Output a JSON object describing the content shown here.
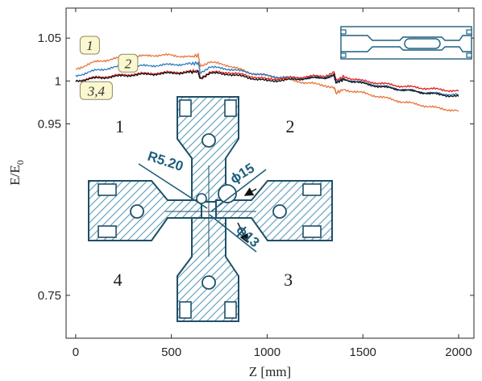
{
  "chart_data": {
    "type": "line",
    "title": "",
    "xlabel": "Z [mm]",
    "ylabel_main": "E/E",
    "ylabel_sub": "0",
    "xlim": [
      -50,
      2080
    ],
    "ylim": [
      0.7,
      1.085
    ],
    "xticks": [
      0,
      500,
      1000,
      1500,
      2000
    ],
    "yticks": [
      0.75,
      0.95,
      1,
      1.05
    ],
    "ytick_labels": [
      "0.75",
      "0.95",
      "1",
      "1.05"
    ],
    "grid": false,
    "series": [
      {
        "name": "1",
        "color": "#e8743b",
        "x": [
          0,
          100,
          200,
          300,
          400,
          500,
          600,
          640,
          650,
          700,
          800,
          900,
          1000,
          1100,
          1200,
          1300,
          1350,
          1360,
          1400,
          1500,
          1600,
          1700,
          1800,
          1900,
          2000
        ],
        "y": [
          1.014,
          1.022,
          1.026,
          1.028,
          1.03,
          1.03,
          1.028,
          1.03,
          1.018,
          1.022,
          1.018,
          1.01,
          1.006,
          1.002,
          0.998,
          0.995,
          0.992,
          0.986,
          0.99,
          0.986,
          0.981,
          0.976,
          0.972,
          0.968,
          0.965
        ]
      },
      {
        "name": "2",
        "color": "#2b7bbd",
        "x": [
          0,
          100,
          200,
          300,
          400,
          500,
          600,
          640,
          650,
          700,
          800,
          900,
          1000,
          1100,
          1200,
          1300,
          1350,
          1360,
          1400,
          1500,
          1600,
          1700,
          1800,
          1900,
          2000
        ],
        "y": [
          1.006,
          1.012,
          1.016,
          1.017,
          1.018,
          1.019,
          1.02,
          1.021,
          1.01,
          1.016,
          1.014,
          1.01,
          1.006,
          1.004,
          1.003,
          1.004,
          1.006,
          0.999,
          1.002,
          0.998,
          0.994,
          0.99,
          0.987,
          0.985,
          0.984
        ]
      },
      {
        "name": "3",
        "color": "#e02020",
        "x": [
          0,
          100,
          200,
          300,
          400,
          500,
          600,
          640,
          650,
          700,
          800,
          900,
          1000,
          1100,
          1200,
          1300,
          1350,
          1360,
          1400,
          1500,
          1600,
          1700,
          1800,
          1900,
          2000
        ],
        "y": [
          1.0,
          1.004,
          1.006,
          1.008,
          1.009,
          1.01,
          1.011,
          1.012,
          1.004,
          1.01,
          1.01,
          1.006,
          1.002,
          1.003,
          1.005,
          1.006,
          1.01,
          1.001,
          1.005,
          1.0,
          0.997,
          0.994,
          0.992,
          0.99,
          0.988
        ]
      },
      {
        "name": "4",
        "color": "#111111",
        "x": [
          0,
          100,
          200,
          300,
          400,
          500,
          600,
          640,
          650,
          700,
          800,
          900,
          1000,
          1100,
          1200,
          1300,
          1350,
          1360,
          1400,
          1500,
          1600,
          1700,
          1800,
          1900,
          2000
        ],
        "y": [
          1.0,
          1.003,
          1.005,
          1.007,
          1.008,
          1.009,
          1.01,
          1.011,
          1.003,
          1.009,
          1.008,
          1.004,
          1.0,
          1.001,
          1.003,
          1.004,
          1.007,
          0.998,
          1.002,
          0.997,
          0.993,
          0.99,
          0.987,
          0.984,
          0.982
        ]
      }
    ],
    "curve_labels": [
      {
        "text": "1",
        "x": 40,
        "y": 1.037
      },
      {
        "text": "2",
        "x": 240,
        "y": 1.016
      },
      {
        "text": "3,4",
        "x": 40,
        "y": 0.984
      }
    ],
    "quadrant_labels": [
      {
        "text": "1",
        "x": 230,
        "y": 0.94
      },
      {
        "text": "2",
        "x": 1120,
        "y": 0.94
      },
      {
        "text": "4",
        "x": 220,
        "y": 0.761
      },
      {
        "text": "3",
        "x": 1110,
        "y": 0.761
      }
    ],
    "dimension_labels": {
      "radius": "R5.20",
      "diameter_15": "ϕ15",
      "diameter_13": "ϕ13"
    },
    "diagram_color": "#1f5f7e"
  }
}
